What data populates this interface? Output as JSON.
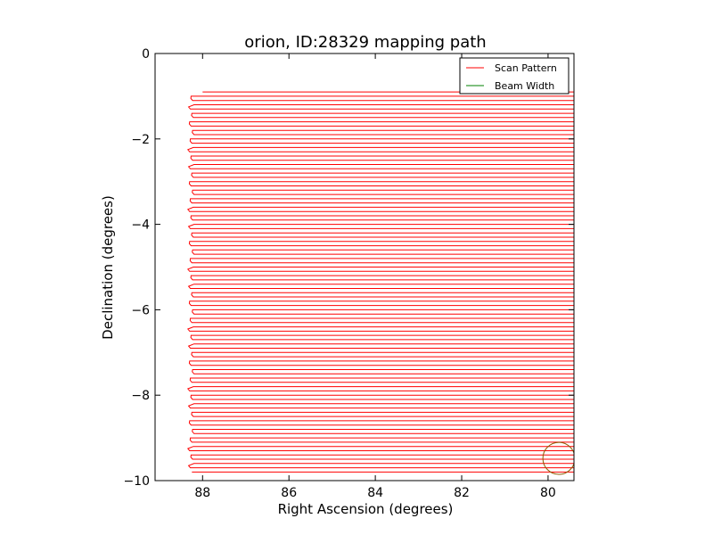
{
  "chart_data": {
    "type": "line",
    "title": "orion, ID:28329 mapping path",
    "xlabel": "Right Ascension (degrees)",
    "ylabel": "Declination (degrees)",
    "xlim": [
      89.1,
      79.4
    ],
    "ylim": [
      -10,
      0
    ],
    "xticks": [
      88,
      86,
      84,
      82,
      80
    ],
    "xtick_labels": [
      "88",
      "86",
      "84",
      "82",
      "80"
    ],
    "yticks": [
      0,
      -2,
      -4,
      -6,
      -8,
      -10
    ],
    "ytick_labels": [
      "0",
      "−2",
      "−4",
      "−6",
      "−8",
      "−10"
    ],
    "x_axis_inverted": true,
    "grid": false,
    "legend_position": "top-right",
    "series": [
      {
        "name": "Scan Pattern",
        "color": "#ff0000",
        "kind": "raster scan",
        "ra_range": [
          79.4,
          88.3
        ],
        "dec_start": -0.9,
        "dec_end": -9.85,
        "dec_step": -0.1,
        "inner_turn_ra": 88.0
      },
      {
        "name": "Beam Width",
        "color": "#008000",
        "kind": "circle",
        "center": [
          79.75,
          -9.48
        ],
        "radius_deg": 0.37,
        "drawn_color": "#8b5a00"
      }
    ]
  }
}
